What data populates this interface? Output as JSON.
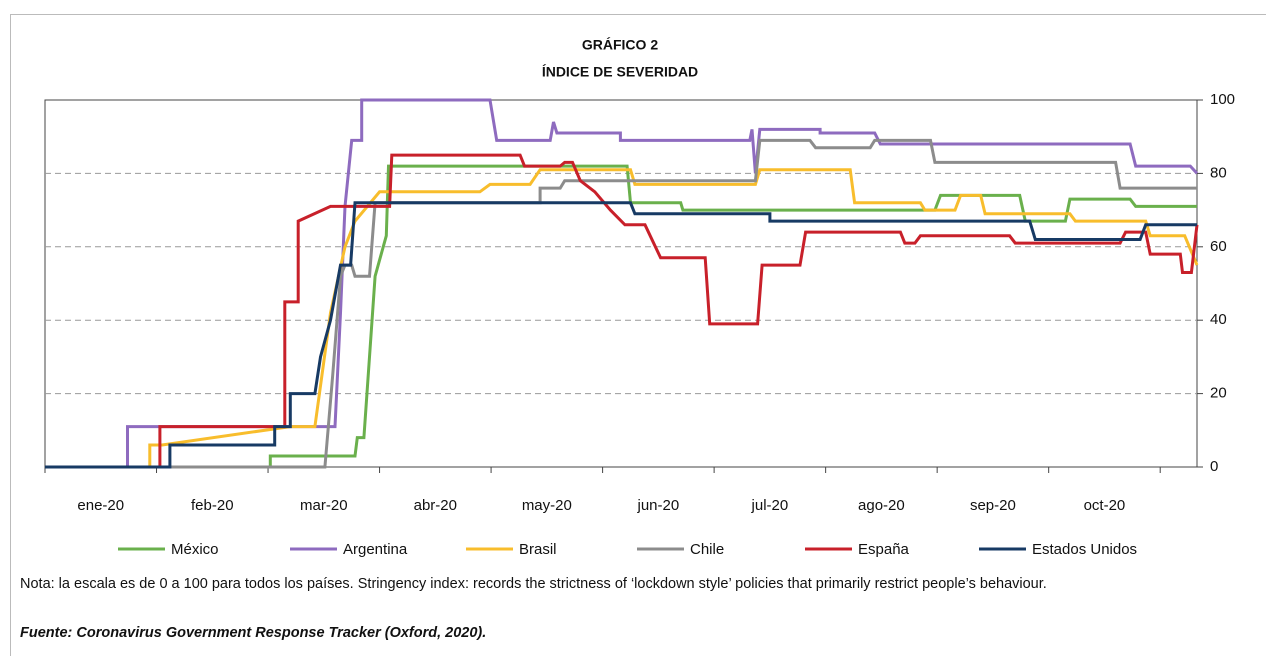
{
  "chart_data": {
    "type": "line",
    "title": "GRÁFICO 2",
    "subtitle": "ÍNDICE DE SEVERIDAD",
    "categories": [
      "ene-20",
      "feb-20",
      "mar-20",
      "abr-20",
      "may-20",
      "jun-20",
      "jul-20",
      "ago-20",
      "sep-20",
      "oct-20"
    ],
    "xlim": [
      0,
      10.33
    ],
    "xticks": [
      0,
      1,
      2,
      3,
      4,
      5,
      6,
      7,
      8,
      9,
      10
    ],
    "ylim": [
      0,
      100
    ],
    "yticks": [
      0,
      20,
      40,
      60,
      80,
      100
    ],
    "grid": true,
    "legend": "bottom",
    "series": [
      {
        "name": "México",
        "color": "#6ab04c",
        "x": [
          0,
          2.02,
          2.02,
          2.78,
          2.8,
          2.86,
          2.96,
          3.06,
          3.08,
          5.22,
          5.25,
          5.7,
          5.72,
          7.98,
          8.03,
          8.74,
          8.79,
          9.15,
          9.19,
          9.73,
          9.78,
          10.33
        ],
        "values": [
          0,
          0,
          3,
          3,
          8,
          8,
          52,
          63,
          82,
          82,
          72,
          72,
          70,
          70,
          74,
          74,
          67,
          67,
          73,
          73,
          71,
          71
        ]
      },
      {
        "name": "Argentina",
        "color": "#8e6bbf",
        "x": [
          0,
          0.74,
          0.74,
          2.6,
          2.65,
          2.69,
          2.75,
          2.84,
          2.84,
          3.99,
          4.05,
          4.53,
          4.56,
          4.59,
          5.16,
          5.16,
          6.32,
          6.34,
          6.37,
          6.41,
          6.95,
          6.95,
          7.44,
          7.49,
          9.73,
          9.78,
          10.27,
          10.33
        ],
        "values": [
          0,
          0,
          11,
          11,
          42,
          71,
          89,
          89,
          100,
          100,
          89,
          89,
          94,
          91,
          91,
          89,
          89,
          92,
          80,
          92,
          92,
          91,
          91,
          88,
          88,
          82,
          82,
          80
        ]
      },
      {
        "name": "Brasil",
        "color": "#f8bd2c",
        "x": [
          0,
          0.94,
          0.94,
          1.05,
          1.05,
          2.2,
          2.42,
          2.56,
          2.69,
          2.78,
          3.0,
          3.9,
          3.99,
          4.35,
          4.44,
          5.25,
          5.29,
          6.37,
          6.41,
          7.22,
          7.26,
          7.85,
          7.89,
          8.16,
          8.21,
          8.39,
          8.43,
          9.19,
          9.24,
          9.87,
          9.91,
          10.22,
          10.33
        ],
        "values": [
          0,
          0,
          6,
          6,
          6,
          11,
          11,
          42,
          60,
          67,
          75,
          75,
          77,
          77,
          81,
          81,
          77,
          77,
          81,
          81,
          72,
          72,
          70,
          70,
          74,
          74,
          69,
          69,
          67,
          67,
          63,
          63,
          55
        ]
      },
      {
        "name": "Chile",
        "color": "#8c8c8c",
        "x": [
          0,
          2.51,
          2.58,
          2.65,
          2.69,
          2.75,
          2.78,
          2.91,
          2.96,
          4.44,
          4.44,
          4.62,
          4.66,
          6.37,
          6.41,
          6.86,
          6.91,
          7.4,
          7.44,
          7.94,
          7.98,
          9.6,
          9.64,
          10.33
        ],
        "values": [
          0,
          0,
          25,
          52,
          55,
          55,
          52,
          52,
          72,
          72,
          76,
          76,
          78,
          78,
          89,
          89,
          87,
          87,
          89,
          89,
          83,
          83,
          76,
          76
        ]
      },
      {
        "name": "España",
        "color": "#c8202a",
        "x": [
          0,
          1.03,
          1.03,
          2.15,
          2.15,
          2.27,
          2.27,
          2.56,
          2.65,
          3.09,
          3.11,
          4.26,
          4.3,
          4.62,
          4.66,
          4.73,
          4.8,
          4.93,
          5.07,
          5.2,
          5.38,
          5.52,
          5.92,
          5.96,
          6.39,
          6.43,
          6.77,
          6.82,
          7.67,
          7.71,
          7.8,
          7.85,
          8.65,
          8.7,
          9.64,
          9.69,
          9.87,
          9.91,
          10.18,
          10.2,
          10.28,
          10.33
        ],
        "values": [
          0,
          0,
          11,
          11,
          45,
          45,
          67,
          71,
          71,
          71,
          85,
          85,
          82,
          82,
          83,
          83,
          78,
          75,
          70,
          66,
          66,
          57,
          57,
          39,
          39,
          55,
          55,
          64,
          64,
          61,
          61,
          63,
          63,
          61,
          61,
          64,
          64,
          58,
          58,
          53,
          53,
          66
        ]
      },
      {
        "name": "Estados Unidos",
        "color": "#173a64",
        "x": [
          0,
          1.12,
          1.12,
          2.06,
          2.06,
          2.2,
          2.2,
          2.42,
          2.47,
          2.56,
          2.65,
          2.74,
          2.78,
          5.25,
          5.29,
          6.5,
          6.5,
          8.83,
          8.88,
          9.82,
          9.87,
          10.33
        ],
        "values": [
          0,
          0,
          6,
          6,
          11,
          11,
          20,
          20,
          30,
          40,
          55,
          55,
          72,
          72,
          69,
          69,
          67,
          67,
          62,
          62,
          66,
          66
        ]
      }
    ],
    "note": "Nota: la escala es de 0 a 100 para todos los países. Stringency index: records the strictness of ‘lockdown style’ policies that primarily restrict people’s behaviour.",
    "source": "Fuente: Coronavirus Government Response Tracker (Oxford, 2020)."
  }
}
